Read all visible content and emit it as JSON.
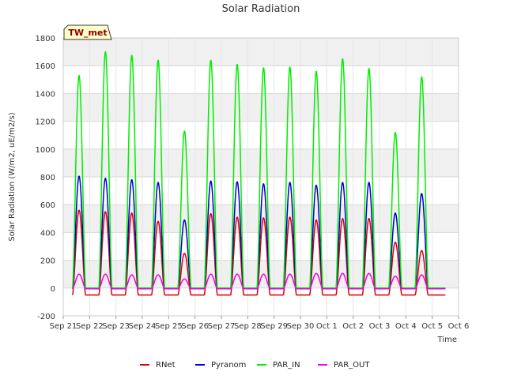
{
  "chart_data": {
    "type": "line",
    "title": "Solar Radiation",
    "station_label": "TW_met",
    "xlabel": "Time",
    "ylabel": "Solar Radiation (W/m2, uE/m2/s)",
    "ylim": [
      -200,
      1800
    ],
    "yticks": [
      -200,
      0,
      200,
      400,
      600,
      800,
      1000,
      1200,
      1400,
      1600,
      1800
    ],
    "xlim": [
      0,
      15
    ],
    "xticks": [
      {
        "pos": 0,
        "label": "Sep 21"
      },
      {
        "pos": 1,
        "label": "Sep 22"
      },
      {
        "pos": 2,
        "label": "Sep 23"
      },
      {
        "pos": 3,
        "label": "Sep 24"
      },
      {
        "pos": 4,
        "label": "Sep 25"
      },
      {
        "pos": 5,
        "label": "Sep 26"
      },
      {
        "pos": 6,
        "label": "Sep 27"
      },
      {
        "pos": 7,
        "label": "Sep 28"
      },
      {
        "pos": 8,
        "label": "Sep 29"
      },
      {
        "pos": 9,
        "label": "Sep 30"
      },
      {
        "pos": 10,
        "label": "Oct 1"
      },
      {
        "pos": 11,
        "label": "Oct 2"
      },
      {
        "pos": 12,
        "label": "Oct 3"
      },
      {
        "pos": 13,
        "label": "Oct 4"
      },
      {
        "pos": 14,
        "label": "Oct 5"
      },
      {
        "pos": 15,
        "label": "Oct 6"
      }
    ],
    "grid": true,
    "legend_placement": "bottom",
    "data_span": [
      0.35,
      14.5
    ],
    "daily_peaks": {
      "days": [
        "Sep 21",
        "Sep 22",
        "Sep 23",
        "Sep 24",
        "Sep 25",
        "Sep 26",
        "Sep 27",
        "Sep 28",
        "Sep 29",
        "Sep 30",
        "Oct 1",
        "Oct 2",
        "Oct 3",
        "Oct 4"
      ],
      "day_start": [
        0.35,
        1.35,
        2.35,
        3.35,
        4.35,
        5.35,
        6.35,
        7.35,
        8.35,
        9.35,
        10.35,
        11.35,
        12.35,
        13.35
      ]
    },
    "series": [
      {
        "name": "RNet",
        "color": "#dd0000",
        "night": -50,
        "peaks": [
          560,
          550,
          540,
          480,
          250,
          535,
          510,
          505,
          510,
          490,
          500,
          500,
          330,
          270
        ]
      },
      {
        "name": "Pyranom",
        "color": "#0000cc",
        "night": -5,
        "peaks": [
          805,
          790,
          780,
          760,
          490,
          770,
          765,
          750,
          760,
          740,
          760,
          760,
          540,
          680
        ]
      },
      {
        "name": "PAR_IN",
        "color": "#00ee00",
        "night": 0,
        "peaks": [
          1530,
          1700,
          1675,
          1640,
          1130,
          1640,
          1610,
          1585,
          1590,
          1560,
          1650,
          1580,
          1120,
          1520
        ]
      },
      {
        "name": "PAR_OUT",
        "color": "#ee00ee",
        "night": -5,
        "peaks": [
          100,
          100,
          95,
          95,
          65,
          100,
          100,
          100,
          100,
          105,
          105,
          105,
          85,
          95
        ]
      }
    ]
  }
}
